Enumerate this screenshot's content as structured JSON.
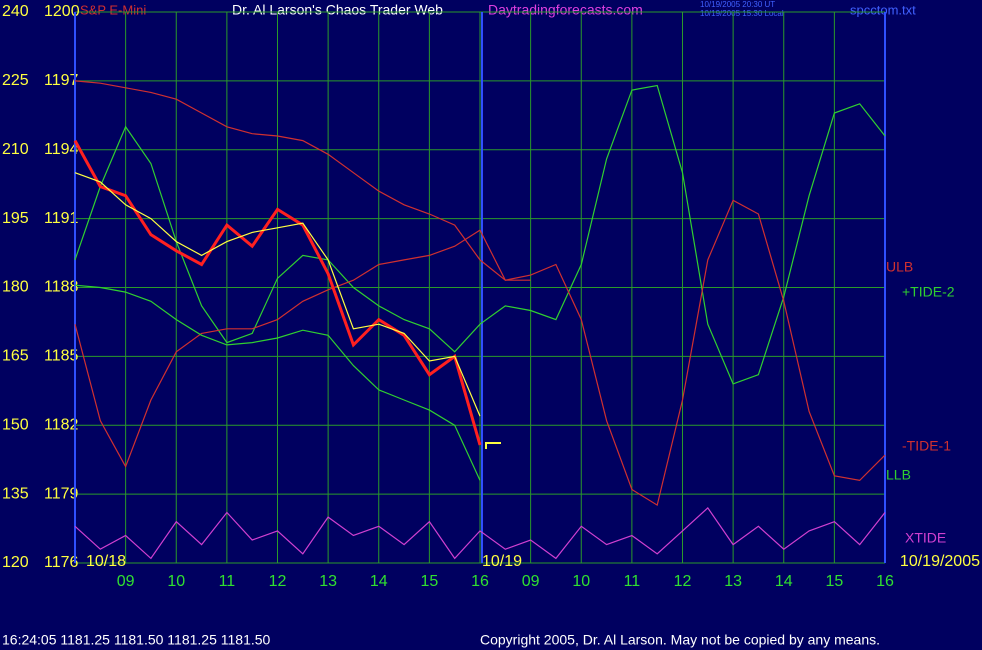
{
  "chart_data": {
    "type": "line",
    "title": "Dr. Al Larson's Chaos Trader Web",
    "subtitle": "Daytradingforecasts.com",
    "instrument": "S&P E-Mini",
    "file": "spcctom.txt",
    "timestamps": [
      "10/19/2005 20:30 UT",
      "10/19/2005 15:30 Local"
    ],
    "status": "16:24:05  1181.25 1181.50 1181.25 1181.50",
    "copyright": "Copyright 2005, Dr. Al Larson. May not be copied by any means.",
    "date_labels": [
      {
        "x": 0,
        "text": "10/18"
      },
      {
        "x": 8,
        "text": "10/19"
      },
      {
        "x": 16,
        "text": "10/19/2005"
      }
    ],
    "xlim": [
      0,
      16
    ],
    "xticks": [
      {
        "value": 1,
        "label": "09"
      },
      {
        "value": 2,
        "label": "10"
      },
      {
        "value": 3,
        "label": "11"
      },
      {
        "value": 4,
        "label": "12"
      },
      {
        "value": 5,
        "label": "13"
      },
      {
        "value": 6,
        "label": "14"
      },
      {
        "value": 7,
        "label": "15"
      },
      {
        "value": 8,
        "label": "16"
      },
      {
        "value": 9,
        "label": "09"
      },
      {
        "value": 10,
        "label": "10"
      },
      {
        "value": 11,
        "label": "11"
      },
      {
        "value": 12,
        "label": "12"
      },
      {
        "value": 13,
        "label": "13"
      },
      {
        "value": 14,
        "label": "14"
      },
      {
        "value": 15,
        "label": "15"
      },
      {
        "value": 16,
        "label": "16"
      }
    ],
    "ylim": [
      120,
      240
    ],
    "yticks": [
      120,
      135,
      150,
      165,
      180,
      195,
      210,
      225,
      240
    ],
    "y2lim": [
      1176,
      1200
    ],
    "y2ticks": [
      1176,
      1179,
      1182,
      1185,
      1188,
      1191,
      1194,
      1197,
      1200
    ],
    "grid": true,
    "x": [
      0,
      0.5,
      1,
      1.5,
      2,
      2.5,
      3,
      3.5,
      4,
      4.5,
      5,
      5.5,
      6,
      6.5,
      7,
      7.5,
      8,
      8.5,
      9,
      9.5,
      10,
      10.5,
      11,
      11.5,
      12,
      12.5,
      13,
      13.5,
      14,
      14.5,
      15,
      15.5,
      16
    ],
    "series": [
      {
        "name": "ULB",
        "color": "#d03030",
        "values": [
          225,
          224.5,
          223.5,
          222.5,
          221,
          218,
          215,
          213.5,
          213,
          212,
          209,
          205,
          201,
          198,
          196,
          193.6,
          186,
          181.6,
          181.6,
          null,
          null,
          null,
          null,
          null,
          null,
          null,
          null,
          null,
          null,
          null,
          null,
          null,
          null
        ]
      },
      {
        "name": "+TIDE-2",
        "color": "#30d030",
        "values": [
          186,
          202,
          215,
          207,
          190,
          176,
          168,
          170,
          182,
          187,
          186,
          180,
          176,
          173,
          171,
          166,
          172,
          176,
          175,
          173,
          185,
          208,
          223,
          224,
          205,
          172,
          159,
          161,
          178,
          200,
          218,
          220,
          213
        ]
      },
      {
        "name": "-TIDE-1",
        "color": "#d03030",
        "values": [
          172,
          151,
          141,
          155.5,
          166,
          170,
          171,
          171,
          173,
          177,
          179.5,
          181.6,
          185,
          186,
          187,
          189,
          192.5,
          181.6,
          182.7,
          185,
          173,
          151,
          136,
          132.6,
          155.5,
          186,
          199,
          196,
          177,
          153,
          139,
          138,
          143.5
        ]
      },
      {
        "name": "LLB",
        "color": "#30d030",
        "values": [
          180.5,
          180,
          179,
          177,
          173,
          169.6,
          167.5,
          168,
          169,
          170.7,
          169.6,
          163,
          157.7,
          155.5,
          153.3,
          150,
          138,
          null,
          null,
          null,
          null,
          null,
          null,
          null,
          null,
          null,
          null,
          null,
          null,
          null,
          null,
          null,
          null
        ]
      },
      {
        "name": "XTIDE",
        "color": "#d040d0",
        "values": [
          128,
          123,
          126,
          121,
          129,
          124,
          131,
          125,
          127,
          122,
          130,
          126,
          128,
          124,
          129,
          121,
          127,
          123,
          125,
          121,
          128,
          124,
          126,
          122,
          127,
          132,
          124,
          128,
          123,
          127,
          129,
          124,
          131
        ]
      },
      {
        "color": "#ff2020",
        "values": [
          212,
          202,
          200,
          191.5,
          188,
          185,
          193.6,
          189,
          197,
          193.6,
          183,
          167.5,
          173,
          169.6,
          161,
          165,
          145.7,
          null,
          null,
          null,
          null,
          null,
          null,
          null,
          null,
          null,
          null,
          null,
          null,
          null,
          null,
          null,
          null
        ]
      },
      {
        "color": "#ffff40",
        "values": [
          205,
          203,
          198,
          195,
          190,
          187,
          190,
          192,
          193,
          194,
          186,
          171,
          172,
          170,
          164,
          165,
          152,
          null,
          null,
          null,
          null,
          null,
          null,
          null,
          null,
          null,
          null,
          null,
          null,
          null,
          null,
          null,
          null
        ]
      }
    ]
  }
}
